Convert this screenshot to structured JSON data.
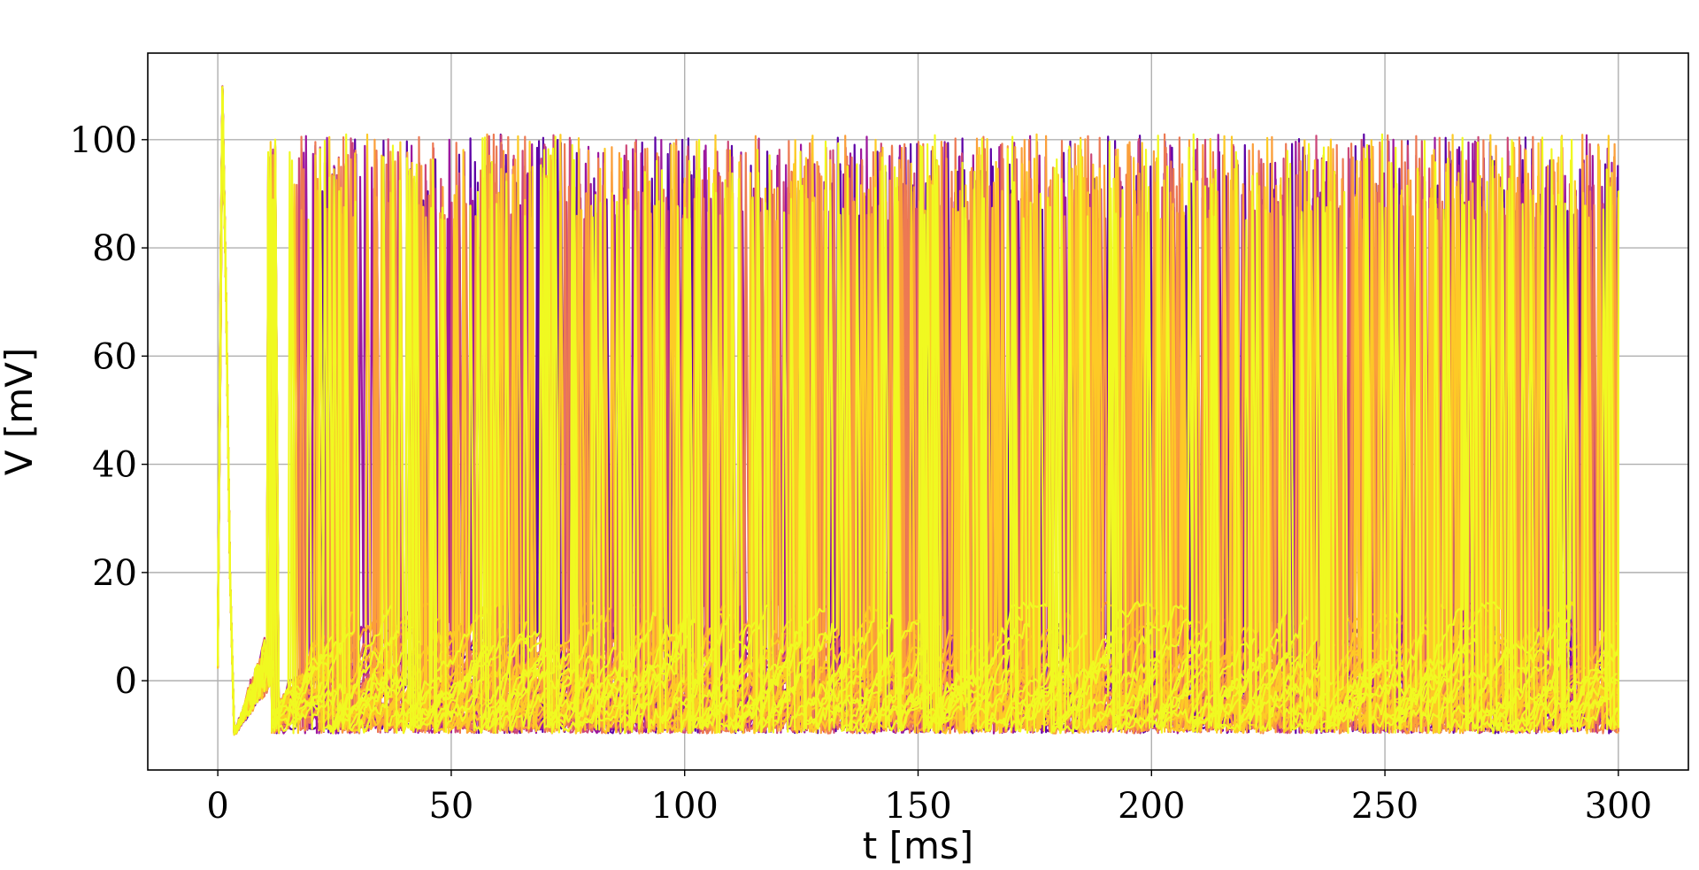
{
  "chart_data": {
    "type": "line",
    "title": "",
    "xlabel": "t [ms]",
    "ylabel": "V [mV]",
    "xlim": [
      -15,
      315
    ],
    "ylim": [
      -16.5,
      116
    ],
    "x_ticks": [
      0,
      50,
      100,
      150,
      200,
      250,
      300
    ],
    "y_ticks": [
      0,
      20,
      40,
      60,
      80,
      100
    ],
    "x_tick_labels": [
      "0",
      "50",
      "100",
      "150",
      "200",
      "250",
      "300"
    ],
    "y_tick_labels": [
      "0",
      "20",
      "40",
      "60",
      "80",
      "100"
    ],
    "grid": true,
    "legend": "none",
    "colormap": "plasma",
    "series_colors": [
      "#5c01a6",
      "#9c179e",
      "#cc4778",
      "#ed7953",
      "#fb9f3a",
      "#fdca26",
      "#f0f921"
    ],
    "n_series": 60,
    "time_range": [
      0,
      300
    ],
    "initial_spike": {
      "t": 1,
      "v": 110
    },
    "post_spike_minimum": {
      "t": 3.5,
      "v": -10
    },
    "regular_spiking_onset": 10,
    "spike_peak_range": [
      85,
      101
    ],
    "resting_floor": -8.5,
    "subthreshold_band": [
      -9,
      15
    ]
  }
}
